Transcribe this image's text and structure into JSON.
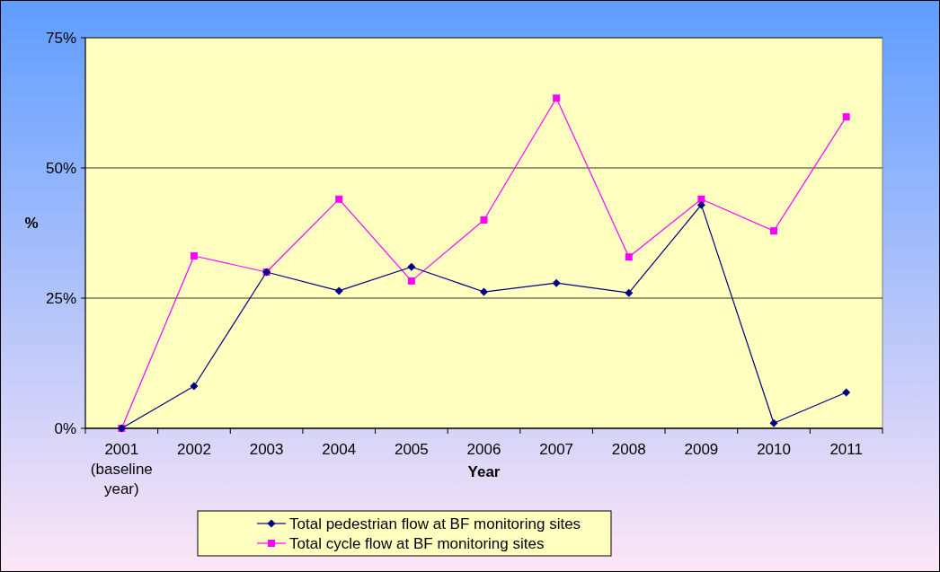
{
  "chart_data": {
    "type": "line",
    "xlabel": "Year",
    "ylabel": "%",
    "categories": [
      "2001 (baseline year)",
      "2002",
      "2003",
      "2004",
      "2005",
      "2006",
      "2007",
      "2008",
      "2009",
      "2010",
      "2011"
    ],
    "ylim": [
      0,
      75
    ],
    "yticks": [
      {
        "value": 0,
        "label": "0%"
      },
      {
        "value": 25,
        "label": "25%"
      },
      {
        "value": 50,
        "label": "50%"
      },
      {
        "value": 75,
        "label": "75%"
      }
    ],
    "grid": "y",
    "legend": "bottom",
    "series": [
      {
        "name": "Total pedestrian flow at BF monitoring sites",
        "color": "#000080",
        "marker": "diamond",
        "values": [
          0,
          8.1,
          30,
          26.4,
          31,
          26.2,
          27.9,
          26,
          42.9,
          1,
          6.9
        ]
      },
      {
        "name": "Total cycle flow at BF monitoring sites",
        "color": "#ff00ff",
        "marker": "square",
        "values": [
          0,
          33.1,
          30,
          44,
          28.3,
          40,
          63.4,
          32.9,
          44,
          37.9,
          59.8
        ]
      }
    ]
  }
}
